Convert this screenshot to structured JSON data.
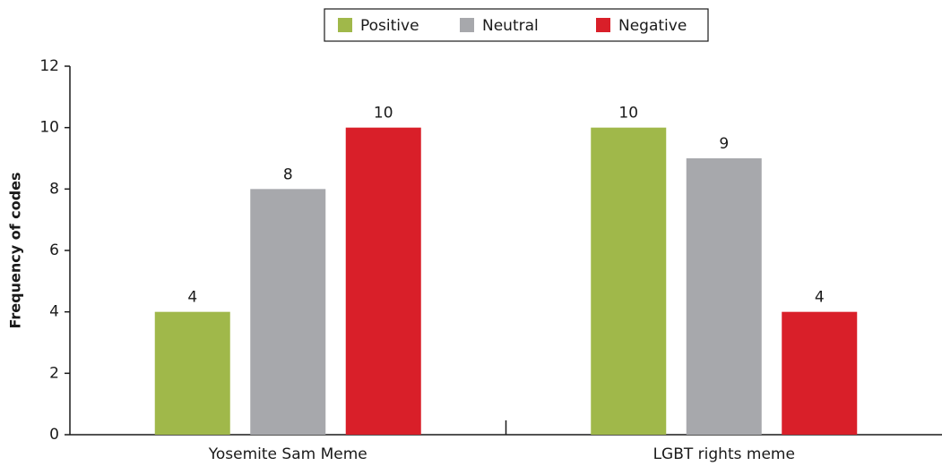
{
  "chart_data": {
    "type": "bar",
    "ylabel": "Frequency of codes",
    "categories": [
      "Yosemite Sam Meme",
      "LGBT rights meme"
    ],
    "series": [
      {
        "name": "Positive",
        "color": "#a0b84a",
        "values": [
          4,
          10
        ]
      },
      {
        "name": "Neutral",
        "color": "#a7a8ac",
        "values": [
          8,
          9
        ]
      },
      {
        "name": "Negative",
        "color": "#d91f29",
        "values": [
          10,
          4
        ]
      }
    ],
    "ylim": [
      0,
      12
    ],
    "yticks": [
      0,
      2,
      4,
      6,
      8,
      10,
      12
    ],
    "grid": false,
    "legend": "top"
  }
}
